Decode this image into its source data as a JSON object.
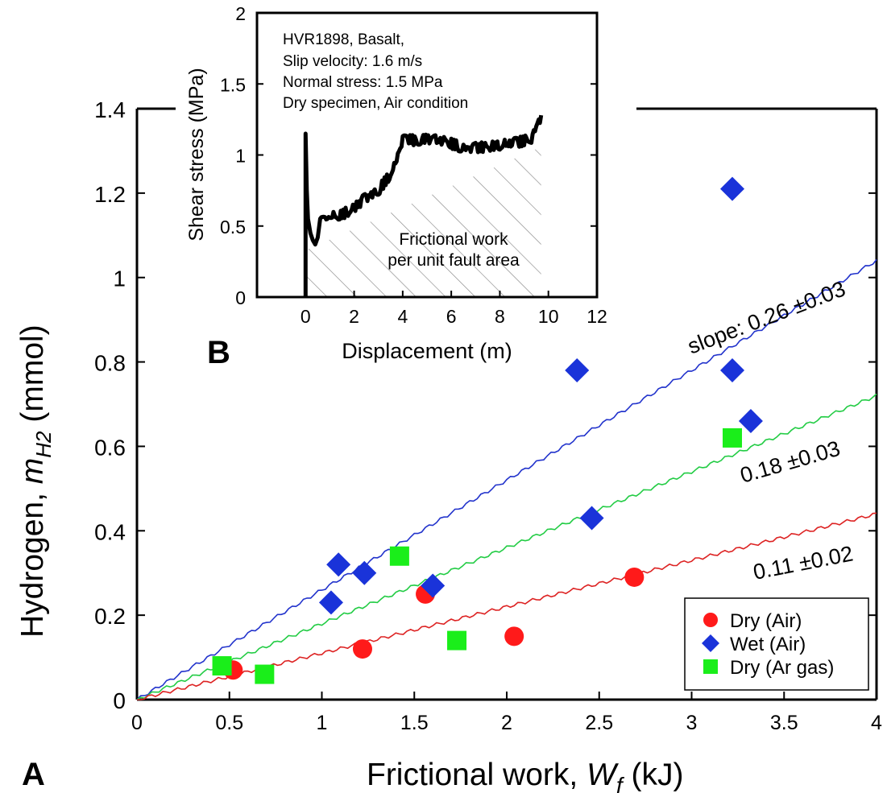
{
  "panel_labels": {
    "main": "A",
    "inset": "B"
  },
  "chart_data": [
    {
      "type": "scatter",
      "xlabel": "Frictional work, ",
      "xlabel_symbol": "W",
      "xlabel_sub": "f",
      "xlabel_unit": " (kJ)",
      "ylabel": "Hydrogen, ",
      "ylabel_symbol": "m",
      "ylabel_sub": "H2",
      "ylabel_unit": "  (mmol)",
      "xlim": [
        0,
        4
      ],
      "ylim": [
        0,
        1.4
      ],
      "xticks": [
        "0",
        "0.5",
        "1",
        "1.5",
        "2",
        "2.5",
        "3",
        "3.5",
        "4"
      ],
      "yticks": [
        "0",
        "0.2",
        "0.4",
        "0.6",
        "0.8",
        "1",
        "1.2",
        "1.4"
      ],
      "legend_position": "bottom-right",
      "series": [
        {
          "name": "Dry  (Air)",
          "marker": "circle",
          "color": "#ff1a1a",
          "points": [
            [
              0.52,
              0.07
            ],
            [
              1.22,
              0.12
            ],
            [
              1.56,
              0.25
            ],
            [
              2.04,
              0.15
            ],
            [
              2.69,
              0.29
            ]
          ]
        },
        {
          "name": "Wet  (Air)",
          "marker": "diamond",
          "color": "#1a33d9",
          "points": [
            [
              1.05,
              0.23
            ],
            [
              1.09,
              0.32
            ],
            [
              1.23,
              0.3
            ],
            [
              1.6,
              0.27
            ],
            [
              2.38,
              0.78
            ],
            [
              2.46,
              0.43
            ],
            [
              3.22,
              1.21
            ],
            [
              3.22,
              0.78
            ],
            [
              3.32,
              0.66
            ]
          ]
        },
        {
          "name": "Dry  (Ar gas)",
          "marker": "square",
          "color": "#1aee1a",
          "points": [
            [
              0.46,
              0.08
            ],
            [
              0.69,
              0.06
            ],
            [
              1.42,
              0.34
            ],
            [
              1.73,
              0.14
            ],
            [
              3.22,
              0.62
            ]
          ]
        }
      ],
      "fit_lines": [
        {
          "slope": 0.26,
          "label": "slope: 0.26 ±0.03",
          "color": "#2233cc"
        },
        {
          "slope": 0.18,
          "label": "0.18 ±0.03",
          "color": "#22cc44"
        },
        {
          "slope": 0.11,
          "label": "0.11 ±0.02",
          "color": "#dd2222"
        }
      ]
    },
    {
      "type": "line",
      "xlabel": "Displacement (m)",
      "ylabel": "Shear stress (MPa)",
      "xlim": [
        -2,
        12
      ],
      "ylim": [
        0,
        2
      ],
      "xticks": [
        "0",
        "2",
        "4",
        "6",
        "8",
        "10",
        "12"
      ],
      "yticks": [
        "0",
        "0.5",
        "1",
        "1.5",
        "2"
      ],
      "annotation_lines": [
        "HVR1898, Basalt,",
        "Slip velocity: 1.6 m/s",
        "Normal stress: 1.5 MPa",
        "Dry specimen, Air condition"
      ],
      "area_label_lines": [
        "Frictional work",
        "per unit fault area"
      ],
      "x": [
        0,
        0,
        0.05,
        0.1,
        0.2,
        0.3,
        0.4,
        0.5,
        0.6,
        0.8,
        1.0,
        1.5,
        2.0,
        2.5,
        3.0,
        3.3,
        3.6,
        3.8,
        4.0,
        4.2,
        4.5,
        5.0,
        5.5,
        6.0,
        6.5,
        7.0,
        7.5,
        8.0,
        8.5,
        9.0,
        9.3,
        9.5,
        9.7
      ],
      "y": [
        0,
        1.15,
        0.75,
        0.55,
        0.45,
        0.4,
        0.37,
        0.42,
        0.55,
        0.55,
        0.56,
        0.58,
        0.63,
        0.7,
        0.75,
        0.82,
        0.88,
        1.0,
        1.1,
        1.12,
        1.1,
        1.12,
        1.1,
        1.08,
        1.05,
        1.05,
        1.06,
        1.07,
        1.08,
        1.1,
        1.12,
        1.2,
        1.28
      ]
    }
  ]
}
